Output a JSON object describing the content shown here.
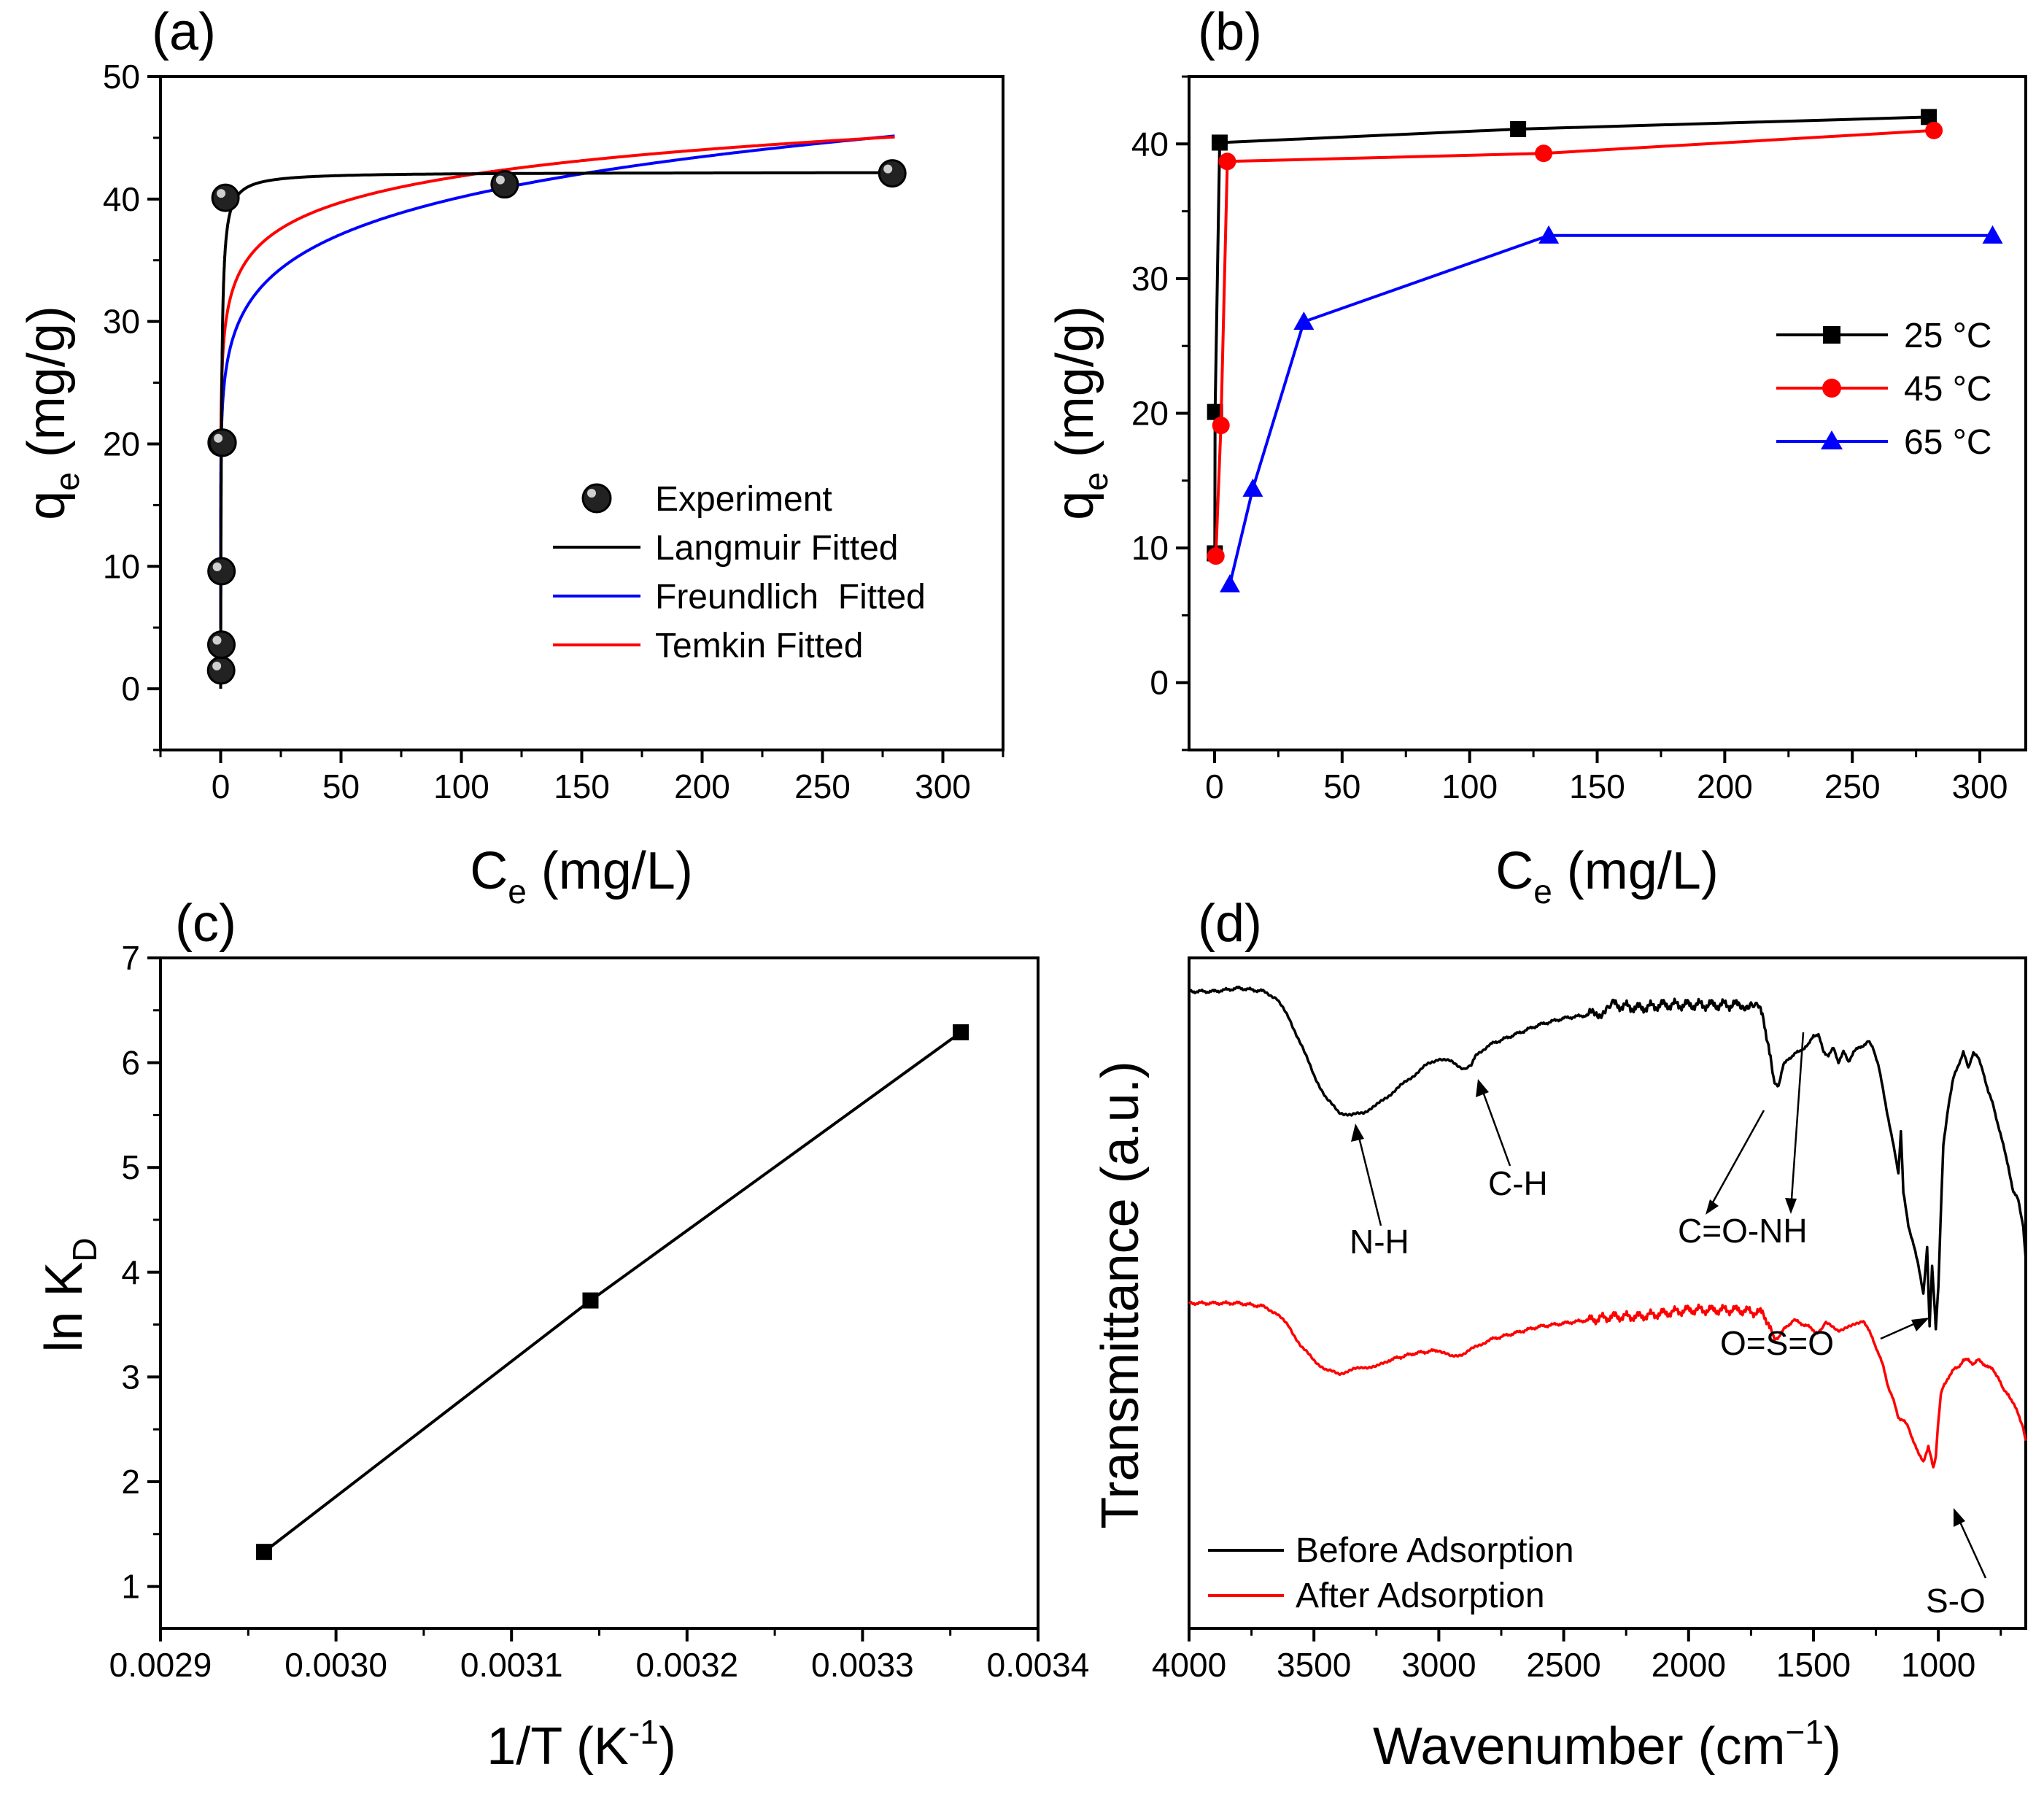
{
  "chart_data": [
    {
      "panel": "(a)",
      "type": "scatter",
      "xlabel": "C",
      "xlabel_sub": "e",
      "xlabel_unit": " (mg/L)",
      "ylabel": "q",
      "ylabel_sub": "e",
      "ylabel_unit": " (mg/g)",
      "xlim": [
        -25,
        325
      ],
      "ylim": [
        -5,
        50
      ],
      "xticks": [
        0,
        50,
        100,
        150,
        200,
        250,
        300
      ],
      "yticks": [
        0,
        10,
        20,
        30,
        40,
        50
      ],
      "legend_position": "bottom-right",
      "experiment": {
        "name": "Experiment",
        "x": [
          0.2,
          0.3,
          0.35,
          0.4,
          0.8,
          2,
          118,
          279
        ],
        "y": [
          1.5,
          3.6,
          9.6,
          20.1,
          20.1,
          40.1,
          41.2,
          42.1
        ]
      },
      "fits": [
        {
          "name": "Langmuir Fitted",
          "model": "langmuir",
          "qm": 42.2,
          "kl": 3.0,
          "color": "#000000"
        },
        {
          "name": "Freundlich  Fitted",
          "model": "freundlich",
          "kf": 23.8,
          "n": 8.8,
          "color": "#0000ff"
        },
        {
          "name": "Temkin Fitted",
          "model": "temkin",
          "A": 27.6,
          "B": 3.1,
          "color": "#ff0000"
        }
      ],
      "fit_range": [
        0,
        280
      ]
    },
    {
      "panel": "(b)",
      "type": "line",
      "xlabel": "C",
      "xlabel_sub": "e",
      "xlabel_unit": " (mg/L)",
      "ylabel": "q",
      "ylabel_sub": "e",
      "ylabel_unit": " (mg/g)",
      "xlim": [
        -10,
        318
      ],
      "ylim": [
        -5,
        45
      ],
      "xticks": [
        0,
        50,
        100,
        150,
        200,
        250,
        300
      ],
      "yticks": [
        0,
        10,
        20,
        30,
        40
      ],
      "legend_position": "middle-right",
      "series": [
        {
          "name": "25 °C",
          "marker": "square",
          "color": "#000000",
          "x": [
            0.1,
            0.2,
            2,
            119,
            280
          ],
          "y": [
            9.6,
            20.1,
            40.1,
            41.1,
            42.0
          ]
        },
        {
          "name": "45 °C",
          "marker": "circle",
          "color": "#ff0000",
          "x": [
            0.5,
            2.5,
            5,
            129,
            282
          ],
          "y": [
            9.4,
            19.1,
            38.7,
            39.3,
            41.0
          ]
        },
        {
          "name": "65 °C",
          "marker": "triangle",
          "color": "#0000ff",
          "x": [
            6,
            15,
            35,
            131,
            305
          ],
          "y": [
            7.3,
            14.4,
            26.8,
            33.2,
            33.2
          ]
        }
      ]
    },
    {
      "panel": "(c)",
      "type": "line",
      "xlabel": "1/T (K",
      "xlabel_sup": "-1",
      "xlabel_unit": ")",
      "ylabel": "ln K",
      "ylabel_sub": "D",
      "xlim": [
        0.0029,
        0.0034
      ],
      "ylim": [
        0.6,
        7
      ],
      "xticks": [
        "0.0029",
        "0.0030",
        "0.0031",
        "0.0032",
        "0.0033",
        "0.0034"
      ],
      "yticks": [
        1,
        2,
        3,
        4,
        5,
        6,
        7
      ],
      "series": [
        {
          "name": "ln KD",
          "marker": "square",
          "color": "#000000",
          "x": [
            0.002959,
            0.003145,
            0.003356
          ],
          "y": [
            1.33,
            3.73,
            6.29
          ]
        }
      ]
    },
    {
      "panel": "(d)",
      "type": "line",
      "xlabel": "Wavenumber (cm",
      "xlabel_sup": "−1",
      "xlabel_unit": ")",
      "ylabel": "Transmittance (a.u.)",
      "xlim": [
        4000,
        650
      ],
      "xticks": [
        4000,
        3500,
        3000,
        2500,
        2000,
        1500,
        1000
      ],
      "ylim": [
        0,
        100
      ],
      "legend_position": "bottom-left",
      "series": [
        {
          "name": "Before Adsorption",
          "color": "#000000",
          "x": [
            4000,
            3900,
            3800,
            3700,
            3650,
            3600,
            3550,
            3500,
            3450,
            3400,
            3350,
            3300,
            3250,
            3200,
            3150,
            3100,
            3050,
            3000,
            2950,
            2900,
            2870,
            2850,
            2800,
            2700,
            2600,
            2500,
            2400,
            2330,
            2300,
            2200,
            2100,
            2000,
            1900,
            1800,
            1750,
            1720,
            1700,
            1680,
            1660,
            1640,
            1620,
            1600,
            1560,
            1520,
            1500,
            1480,
            1460,
            1440,
            1420,
            1400,
            1380,
            1360,
            1340,
            1300,
            1280,
            1260,
            1240,
            1220,
            1200,
            1180,
            1160,
            1150,
            1140,
            1120,
            1100,
            1080,
            1060,
            1045,
            1035,
            1025,
            1010,
            1000,
            990,
            980,
            960,
            940,
            920,
            900,
            880,
            860,
            840,
            820,
            800,
            780,
            760,
            740,
            720,
            700,
            680,
            660,
            650
          ],
          "y": [
            95,
            95,
            95.5,
            95,
            94,
            91,
            87,
            82.5,
            79,
            77,
            76.5,
            77,
            78,
            79.5,
            81,
            82.5,
            84,
            85,
            84.5,
            83.5,
            84,
            85.5,
            87,
            88.5,
            90,
            91,
            91.5,
            92,
            93,
            92.5,
            93,
            93,
            93,
            93,
            93,
            92.5,
            91,
            87,
            81.5,
            81,
            84,
            85,
            86,
            87,
            88.5,
            88.5,
            86,
            85.5,
            86.5,
            84.5,
            86,
            84.5,
            86,
            87,
            87.5,
            86.5,
            84,
            80,
            76,
            72,
            68,
            74,
            65,
            60,
            57.5,
            54,
            50,
            57,
            45,
            54,
            44.5,
            51,
            62,
            72,
            78,
            82,
            84,
            86,
            83.5,
            86,
            85,
            83,
            80,
            78,
            75,
            72,
            69,
            65,
            64,
            60,
            55
          ]
        },
        {
          "name": "After Adsorption",
          "color": "#ff0000",
          "x": [
            4000,
            3900,
            3800,
            3700,
            3650,
            3600,
            3550,
            3500,
            3450,
            3400,
            3350,
            3300,
            3250,
            3200,
            3100,
            3000,
            2950,
            2900,
            2850,
            2800,
            2700,
            2600,
            2500,
            2400,
            2300,
            2200,
            2100,
            2000,
            1900,
            1800,
            1700,
            1680,
            1660,
            1640,
            1620,
            1580,
            1520,
            1480,
            1450,
            1400,
            1350,
            1300,
            1280,
            1260,
            1240,
            1220,
            1200,
            1180,
            1160,
            1140,
            1120,
            1100,
            1080,
            1060,
            1040,
            1020,
            1010,
            1000,
            990,
            980,
            960,
            940,
            920,
            900,
            880,
            860,
            840,
            820,
            800,
            780,
            760,
            740,
            720,
            700,
            680,
            660,
            650
          ],
          "y": [
            48.5,
            48.5,
            48.5,
            48,
            47,
            45,
            42,
            40,
            38.5,
            38,
            38.5,
            39,
            39,
            40,
            41,
            41.5,
            40.5,
            41,
            42,
            43,
            44,
            45,
            45.5,
            46,
            46.5,
            46.5,
            47,
            47.5,
            47.5,
            47.5,
            47,
            45.5,
            43,
            43.5,
            44.5,
            46,
            45,
            44,
            45.5,
            44.5,
            45,
            46,
            44.5,
            43,
            41,
            39,
            36,
            34,
            31.5,
            31,
            30,
            28,
            26,
            25,
            27,
            24,
            25.5,
            31,
            35,
            36,
            37.5,
            38.5,
            39,
            40,
            40,
            39.5,
            40,
            39.5,
            39,
            38.5,
            37.5,
            35.5,
            35,
            33.5,
            32,
            30,
            28
          ]
        }
      ],
      "annotations": [
        "N-H",
        "C-H",
        "C=O-NH",
        "O=S=O",
        "S-O"
      ]
    }
  ]
}
